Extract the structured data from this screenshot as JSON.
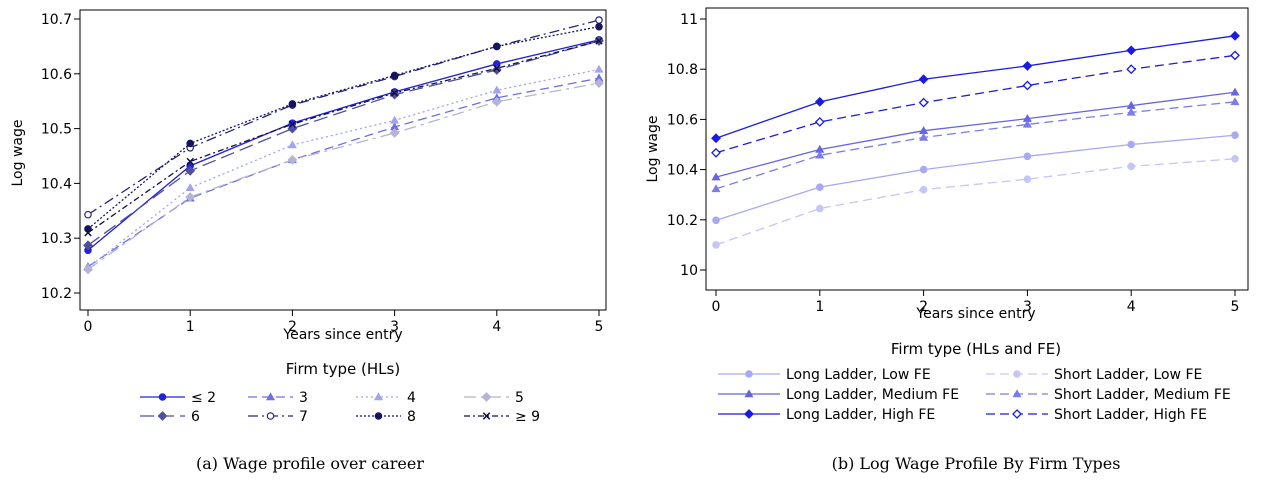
{
  "chart_data": [
    {
      "type": "line",
      "caption": "(a) Wage profile over career",
      "xlabel": "Years since entry",
      "ylabel": "Log wage",
      "x": [
        0,
        1,
        2,
        3,
        4,
        5
      ],
      "xlim": [
        0,
        5
      ],
      "ylim": [
        10.2,
        10.7
      ],
      "yticks": [
        10.2,
        10.3,
        10.4,
        10.5,
        10.6,
        10.7
      ],
      "ytick_labels": [
        "10.2",
        "10.3",
        "10.4",
        "10.5",
        "10.6",
        "10.7"
      ],
      "legend_title": "Firm type (HLs)",
      "series": [
        {
          "name": "≤ 2",
          "values": [
            10.278,
            10.432,
            10.51,
            10.567,
            10.618,
            10.662
          ],
          "color": "#2323d6",
          "dash": "",
          "marker": "circle-filled"
        },
        {
          "name": "3",
          "values": [
            10.248,
            10.373,
            10.443,
            10.503,
            10.556,
            10.592
          ],
          "color": "#6f6fe6",
          "dash": "9,5",
          "marker": "triangle-filled"
        },
        {
          "name": "4",
          "values": [
            10.246,
            10.392,
            10.47,
            10.515,
            10.57,
            10.608
          ],
          "color": "#a3a3f0",
          "dash": "2,3",
          "marker": "triangle-filled"
        },
        {
          "name": "5",
          "values": [
            10.243,
            10.375,
            10.443,
            10.492,
            10.549,
            10.583
          ],
          "color": "#b5b5d3",
          "dash": "12,5,3,5",
          "marker": "diamond-filled"
        },
        {
          "name": "6",
          "values": [
            10.287,
            10.423,
            10.5,
            10.562,
            10.607,
            10.66
          ],
          "color": "#4f4f9e",
          "dash": "14,6",
          "marker": "diamond-filled"
        },
        {
          "name": "7",
          "values": [
            10.343,
            10.465,
            10.543,
            10.595,
            10.65,
            10.698
          ],
          "color": "#262673",
          "dash": "10,4,2,4",
          "marker": "circle-open"
        },
        {
          "name": "8",
          "values": [
            10.317,
            10.473,
            10.545,
            10.597,
            10.65,
            10.686
          ],
          "color": "#141462",
          "dash": "2,2",
          "marker": "circle-filled"
        },
        {
          "name": "≥ 9",
          "values": [
            10.31,
            10.44,
            10.508,
            10.565,
            10.61,
            10.66
          ],
          "color": "#111144",
          "dash": "6,3,2,3",
          "marker": "x"
        }
      ]
    },
    {
      "type": "line",
      "caption": "(b) Log Wage Profile By Firm Types",
      "xlabel": "Years since entry",
      "ylabel": "Log wage",
      "x": [
        0,
        1,
        2,
        3,
        4,
        5
      ],
      "xlim": [
        0,
        5
      ],
      "ylim": [
        10.0,
        11.0
      ],
      "yticks": [
        10.0,
        10.2,
        10.4,
        10.6,
        10.8,
        11.0
      ],
      "ytick_labels": [
        "10",
        "10.2",
        "10.4",
        "10.6",
        "10.8",
        "11"
      ],
      "legend_title": "Firm type (HLs and FE)",
      "series": [
        {
          "name": "Long Ladder, Low FE",
          "values": [
            10.198,
            10.33,
            10.4,
            10.453,
            10.5,
            10.537
          ],
          "color": "#a9a9f2",
          "dash": "",
          "marker": "circle-filled"
        },
        {
          "name": "Short Ladder, Low FE",
          "values": [
            10.1,
            10.245,
            10.32,
            10.362,
            10.413,
            10.443
          ],
          "color": "#c6c6f6",
          "dash": "9,5",
          "marker": "circle-filled"
        },
        {
          "name": "Long Ladder, Medium FE",
          "values": [
            10.37,
            10.48,
            10.555,
            10.603,
            10.655,
            10.708
          ],
          "color": "#6565e2",
          "dash": "",
          "marker": "triangle-filled"
        },
        {
          "name": "Short Ladder, Medium FE",
          "values": [
            10.323,
            10.457,
            10.528,
            10.58,
            10.628,
            10.67
          ],
          "color": "#7c7ce8",
          "dash": "9,5",
          "marker": "triangle-filled"
        },
        {
          "name": "Long Ladder, High FE",
          "values": [
            10.525,
            10.67,
            10.76,
            10.813,
            10.875,
            10.933
          ],
          "color": "#1b1be0",
          "dash": "",
          "marker": "diamond-filled"
        },
        {
          "name": "Short Ladder, High FE",
          "values": [
            10.467,
            10.59,
            10.667,
            10.735,
            10.8,
            10.855
          ],
          "color": "#1b1be0",
          "dash": "9,5",
          "marker": "diamond-open"
        }
      ]
    }
  ]
}
